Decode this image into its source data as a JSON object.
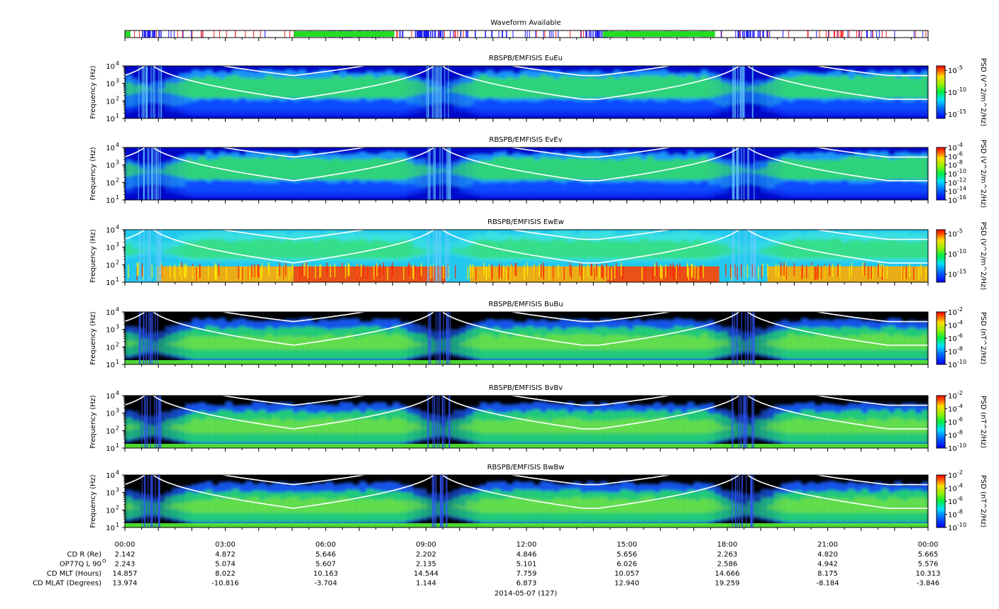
{
  "chart_data": {
    "type": "heatmap",
    "date_label": "2014-05-07 (127)",
    "waveform": {
      "title": "Waveform Available",
      "bands": [
        {
          "from": "00:00",
          "to": "00:10",
          "color": "#22dd22"
        },
        {
          "from": "05:03",
          "to": "08:03",
          "color": "#22dd22"
        },
        {
          "from": "14:17",
          "to": "17:38",
          "color": "#22dd22"
        }
      ],
      "colors": {
        "green": "#22dd22",
        "blue": "#1a1aff",
        "red": "#ff2222"
      }
    },
    "x_ticks": [
      "00:00",
      "03:00",
      "06:00",
      "09:00",
      "12:00",
      "15:00",
      "18:00",
      "21:00",
      "00:00"
    ],
    "y_ticks": [
      "10",
      "10",
      "10",
      "10"
    ],
    "y_tick_exponents": [
      "1",
      "2",
      "3",
      "4"
    ],
    "ylim": [
      10,
      10000
    ],
    "yscale": "log",
    "colorbar": "rainbow (blue → green → yellow → red)",
    "panels": [
      {
        "title": "RBSPB/EMFISIS  EuEu",
        "ylabel": "Frequency (Hz)",
        "zlabel": "PSD (V^2/m^2/Hz)",
        "cb_ticks": [
          "10",
          "10",
          "10"
        ],
        "cb_exponents": [
          "-5",
          "-10",
          "-15"
        ],
        "cb_range": [
          -16,
          -4
        ],
        "style": "E"
      },
      {
        "title": "RBSPB/EMFISIS  EvEv",
        "ylabel": "Frequency (Hz)",
        "zlabel": "PSD (V^2/m^2/Hz)",
        "cb_ticks": [
          "10",
          "10",
          "10",
          "10",
          "10",
          "10",
          "10"
        ],
        "cb_exponents": [
          "-4",
          "-6",
          "-8",
          "-10",
          "-12",
          "-14",
          "-16"
        ],
        "cb_range": [
          -16,
          -4
        ],
        "style": "E"
      },
      {
        "title": "RBSPB/EMFISIS  EwEw",
        "ylabel": "Frequency (Hz)",
        "zlabel": "PSD (V^2/m^2/Hz)",
        "cb_ticks": [
          "10",
          "10",
          "10"
        ],
        "cb_exponents": [
          "-5",
          "-10",
          "-15"
        ],
        "cb_range": [
          -17,
          -4
        ],
        "style": "Ew"
      },
      {
        "title": "RBSPB/EMFISIS  BuBu",
        "ylabel": "Frequency (Hz)",
        "zlabel": "PSD (nT^2/Hz)",
        "cb_ticks": [
          "10",
          "10",
          "10",
          "10",
          "10"
        ],
        "cb_exponents": [
          "-2",
          "-4",
          "-6",
          "-8",
          "-10"
        ],
        "cb_range": [
          -10,
          -2
        ],
        "style": "B"
      },
      {
        "title": "RBSPB/EMFISIS  BvBv",
        "ylabel": "Frequency (Hz)",
        "zlabel": "PSD (nT^2/Hz)",
        "cb_ticks": [
          "10",
          "10",
          "10",
          "10",
          "10"
        ],
        "cb_exponents": [
          "-2",
          "-4",
          "-6",
          "-8",
          "-10"
        ],
        "cb_range": [
          -10,
          -2
        ],
        "style": "B"
      },
      {
        "title": "RBSPB/EMFISIS  BwBw",
        "ylabel": "Frequency (Hz)",
        "zlabel": "PSD (nT^2/Hz)",
        "cb_ticks": [
          "10",
          "10",
          "10",
          "10",
          "10"
        ],
        "cb_exponents": [
          "-2",
          "-4",
          "-6",
          "-8",
          "-10"
        ],
        "cb_range": [
          -10,
          -2
        ],
        "style": "B"
      }
    ],
    "ephemeris": [
      {
        "label": "CD R (Re)",
        "values": [
          "2.142",
          "4.872",
          "5.646",
          "2.202",
          "4.846",
          "5.656",
          "2.263",
          "4.820",
          "5.665"
        ]
      },
      {
        "label": "OP77Q L 90",
        "label_sup": "O",
        "values": [
          "2.243",
          "5.074",
          "5.607",
          "2.135",
          "5.101",
          "6.026",
          "2.586",
          "4.942",
          "5.576"
        ]
      },
      {
        "label": "CD MLT (Hours)",
        "values": [
          "14.857",
          "8.022",
          "10.163",
          "14.544",
          "7.759",
          "10.057",
          "14.666",
          "8.175",
          "10.313"
        ]
      },
      {
        "label": "CD MLAT (Degrees)",
        "values": [
          "13.974",
          "-10.816",
          "-3.704",
          "1.144",
          "6.873",
          "12.940",
          "19.259",
          "-8.184",
          "-3.846"
        ]
      }
    ]
  }
}
